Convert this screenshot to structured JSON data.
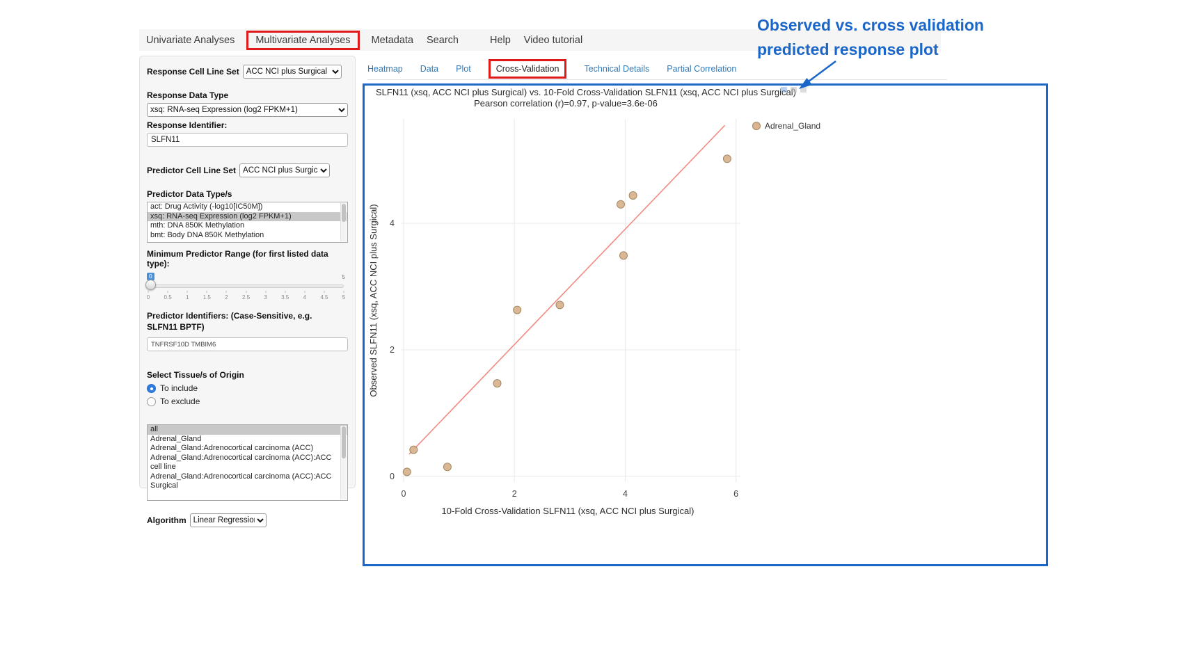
{
  "colors": {
    "accent_blue": "#1b66c9",
    "link_blue": "#337ab7",
    "highlight_red": "#e01919",
    "marker_tan": "#d9b48f",
    "marker_border": "#a3875f",
    "trend_red": "#f28b82"
  },
  "nav": {
    "items": [
      "Univariate Analyses",
      "Multivariate Analyses",
      "Metadata",
      "Search",
      "Help",
      "Video tutorial"
    ],
    "active": "Multivariate Analyses"
  },
  "result_tabs": {
    "items": [
      "Heatmap",
      "Data",
      "Plot",
      "Cross-Validation",
      "Technical Details",
      "Partial Correlation"
    ],
    "active": "Cross-Validation"
  },
  "sidebar": {
    "response_cell_line_set_label": "Response Cell Line Set",
    "response_cell_line_set_value": "ACC NCI plus Surgical",
    "response_data_type_label": "Response Data Type",
    "response_data_type_value": "xsq: RNA-seq Expression (log2 FPKM+1)",
    "response_identifier_label": "Response Identifier:",
    "response_identifier_value": "SLFN11",
    "predictor_cell_line_set_label": "Predictor Cell Line Set",
    "predictor_cell_line_set_value": "ACC NCI plus Surgical",
    "predictor_data_types_label": "Predictor Data Type/s",
    "predictor_data_types_options": [
      "act: Drug Activity (-log10[IC50M])",
      "xsq: RNA-seq Expression (log2 FPKM+1)",
      "mth: DNA 850K Methylation",
      "bmt: Body DNA 850K Methylation"
    ],
    "predictor_data_types_selected": "xsq: RNA-seq Expression (log2 FPKM+1)",
    "min_range_label": "Minimum Predictor Range (for first listed data type):",
    "min_range_value": "0",
    "min_range_max": "5",
    "min_range_ticks": [
      "0",
      "0.5",
      "1",
      "1.5",
      "2",
      "2.5",
      "3",
      "3.5",
      "4",
      "4.5",
      "5"
    ],
    "predictor_identifiers_label": "Predictor Identifiers: (Case-Sensitive, e.g. SLFN11 BPTF)",
    "predictor_identifiers_value": "TNFRSF10D TMBIM6",
    "tissue_label": "Select Tissue/s of Origin",
    "tissue_radio_include": "To include",
    "tissue_radio_exclude": "To exclude",
    "tissue_radio_selected": "To include",
    "tissue_options": [
      "all",
      "Adrenal_Gland",
      "Adrenal_Gland:Adrenocortical carcinoma (ACC)",
      "Adrenal_Gland:Adrenocortical carcinoma (ACC):ACC cell line",
      "Adrenal_Gland:Adrenocortical carcinoma (ACC):ACC Surgical"
    ],
    "tissue_selected": "all",
    "algorithm_label": "Algorithm",
    "algorithm_value": "Linear Regression"
  },
  "chart_data": {
    "type": "scatter",
    "title": "SLFN11 (xsq, ACC NCI plus Surgical) vs. 10-Fold Cross-Validation SLFN11 (xsq, ACC NCI plus Surgical)",
    "subtitle": "Pearson correlation (r)=0.97, p-value=3.6e-06",
    "xlabel": "10-Fold Cross-Validation SLFN11 (xsq, ACC NCI plus Surgical)",
    "ylabel": "Observed SLFN11 (xsq, ACC NCI plus Surgical)",
    "xlim": [
      -0.05,
      6.08
    ],
    "ylim": [
      -0.09,
      5.65
    ],
    "xticks": [
      0,
      2,
      4,
      6
    ],
    "yticks": [
      0,
      2,
      4
    ],
    "grid": true,
    "legend_position": "right",
    "legend": [
      {
        "label": "Adrenal_Gland",
        "color": "#d9b48f"
      }
    ],
    "series": [
      {
        "name": "Adrenal_Gland",
        "marker_color": "#d9b48f",
        "marker_border": "#a3875f",
        "points": [
          [
            0.06,
            0.07
          ],
          [
            0.18,
            0.42
          ],
          [
            0.79,
            0.15
          ],
          [
            1.69,
            1.47
          ],
          [
            2.05,
            2.63
          ],
          [
            2.82,
            2.71
          ],
          [
            3.97,
            3.49
          ],
          [
            3.92,
            4.3
          ],
          [
            4.14,
            4.44
          ],
          [
            5.84,
            5.02
          ]
        ]
      }
    ],
    "trendline": {
      "color": "#f28b82",
      "x1": 0.1,
      "y1": 0.35,
      "x2": 5.8,
      "y2": 5.55
    }
  },
  "annotation": {
    "line1": "Observed vs. cross validation",
    "line2": "predicted response plot"
  }
}
